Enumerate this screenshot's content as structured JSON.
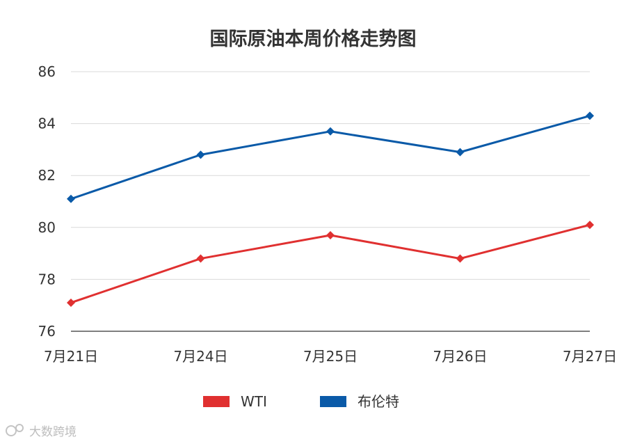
{
  "chart_data": {
    "type": "line",
    "title": "国际原油本周价格走势图",
    "categories": [
      "7月21日",
      "7月24日",
      "7月25日",
      "7月26日",
      "7月27日"
    ],
    "series": [
      {
        "name": "WTI",
        "color": "#e03030",
        "values": [
          77.1,
          78.8,
          79.7,
          78.8,
          80.1
        ]
      },
      {
        "name": "布伦特",
        "color": "#0a5aa8",
        "values": [
          81.1,
          82.8,
          83.7,
          82.9,
          84.3
        ]
      }
    ],
    "ylim": [
      76,
      86
    ],
    "yticks": [
      76,
      78,
      80,
      82,
      84,
      86
    ],
    "grid": true,
    "legend": "bottom-center",
    "xlabel": "",
    "ylabel": ""
  },
  "watermark": {
    "text": "大数跨境"
  }
}
